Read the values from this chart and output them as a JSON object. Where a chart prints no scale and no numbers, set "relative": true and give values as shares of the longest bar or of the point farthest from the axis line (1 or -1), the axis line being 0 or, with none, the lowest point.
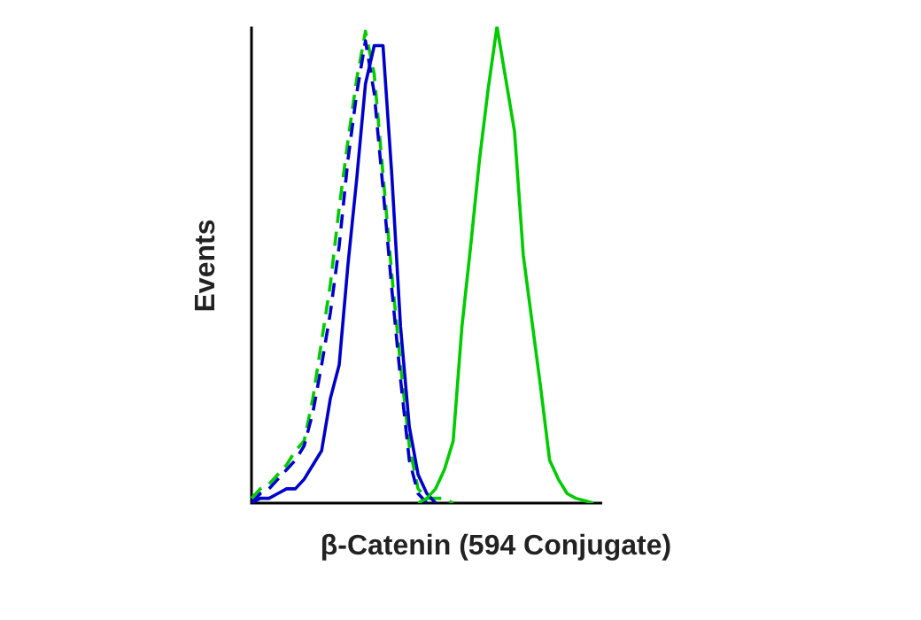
{
  "chart_data": {
    "type": "line",
    "relative": true,
    "xlabel": "β-Catenin (594 Conjugate)",
    "ylabel": "Events",
    "tick_labels": false,
    "legend": false,
    "marker": "none",
    "categories": [
      null,
      null,
      null,
      null,
      null,
      null,
      null,
      null,
      null,
      null,
      null,
      null,
      null,
      null,
      null,
      null,
      null,
      null,
      null,
      null,
      null,
      null,
      null,
      null,
      null,
      null,
      null,
      null,
      null,
      null,
      null,
      null,
      null,
      null,
      null,
      null,
      null,
      null,
      null,
      null,
      null
    ],
    "series": [
      {
        "color": "#00cc00",
        "line_style": "solid",
        "values": [
          null,
          null,
          null,
          null,
          null,
          null,
          null,
          null,
          null,
          null,
          null,
          null,
          null,
          null,
          null,
          null,
          null,
          null,
          null,
          0,
          0.01,
          0.03,
          0.07,
          0.13,
          0.37,
          0.54,
          0.72,
          0.87,
          1,
          0.89,
          0.78,
          0.52,
          0.38,
          0.24,
          0.09,
          0.05,
          0.02,
          0.01,
          0.005,
          0,
          null
        ]
      },
      {
        "color": "#0000cc",
        "line_style": "solid",
        "values": [
          0,
          0.01,
          0.01,
          0.02,
          0.03,
          0.03,
          0.05,
          0.08,
          0.11,
          0.22,
          0.29,
          0.5,
          0.68,
          0.88,
          0.96,
          0.96,
          0.69,
          0.37,
          0.16,
          0.06,
          0.02,
          0,
          null,
          null,
          null,
          null,
          null,
          null,
          null,
          null,
          null,
          null,
          null,
          null,
          null,
          null,
          null,
          null,
          null,
          null,
          null
        ]
      },
      {
        "color": "#0000cc",
        "line_style": "dashed",
        "values": [
          0,
          0.02,
          0.03,
          0.05,
          0.07,
          0.09,
          0.12,
          0.19,
          0.29,
          0.4,
          0.54,
          0.72,
          0.86,
          0.97,
          0.86,
          0.66,
          0.45,
          0.26,
          0.09,
          0.02,
          0,
          null,
          null,
          null,
          null,
          null,
          null,
          null,
          null,
          null,
          null,
          null,
          null,
          null,
          null,
          null,
          null,
          null,
          null,
          null,
          null
        ]
      },
      {
        "color": "#00cc00",
        "line_style": "dashed",
        "values": [
          0.01,
          0.03,
          0.04,
          0.06,
          0.08,
          0.11,
          0.13,
          0.22,
          0.34,
          0.46,
          0.62,
          0.76,
          0.89,
          0.99,
          0.9,
          0.69,
          0.48,
          0.29,
          0.12,
          0.03,
          0.01,
          0.01,
          0.01,
          0,
          null,
          null,
          null,
          null,
          null,
          null,
          null,
          null,
          null,
          null,
          null,
          null,
          null,
          null,
          null,
          null,
          null
        ]
      }
    ]
  }
}
